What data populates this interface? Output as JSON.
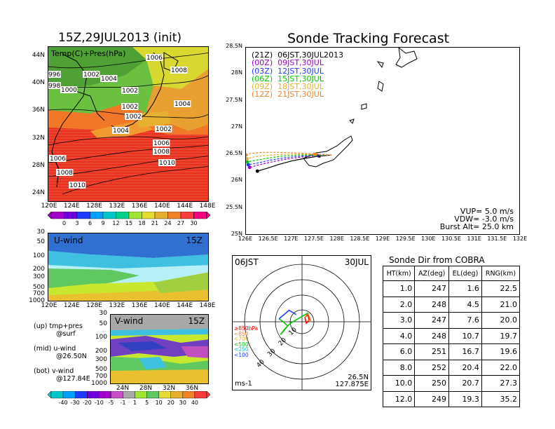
{
  "left_title": "15Z,29JUL2013 (init)",
  "map_top": {
    "label": "Temp(C)+Pres(hPa)",
    "lon_ticks": [
      "120E",
      "124E",
      "128E",
      "132E",
      "136E",
      "140E",
      "144E",
      "148E"
    ],
    "lat_ticks": [
      "24N",
      "28N",
      "32N",
      "36N",
      "40N",
      "44N"
    ],
    "isobar_labels": [
      "1006",
      "1008",
      "1002",
      "1004",
      "1002",
      "996",
      "998",
      "1000",
      "1002",
      "1004",
      "1002",
      "1004",
      "1002",
      "1006",
      "1008",
      "1010",
      "1006",
      "1008",
      "1010"
    ],
    "colorbar_ticks": [
      "0",
      "3",
      "6",
      "9",
      "12",
      "15",
      "18",
      "21",
      "24",
      "27",
      "30"
    ]
  },
  "u_panel": {
    "label": "U-wind",
    "time": "15Z",
    "p_ticks": [
      "30",
      "50",
      "100",
      "200",
      "300",
      "500",
      "700",
      "1000"
    ],
    "lon_ticks": [
      "120E",
      "124E",
      "128E",
      "132E",
      "136E",
      "140E",
      "144E",
      "148E"
    ]
  },
  "v_panel": {
    "label": "V-wind",
    "time": "15Z",
    "p_ticks": [
      "30",
      "50",
      "100",
      "200",
      "300",
      "500",
      "700",
      "1000"
    ],
    "lat_ticks": [
      "24N",
      "28N",
      "32N",
      "36N"
    ]
  },
  "notes": [
    [
      "(up) tmp+pres",
      "@surf"
    ],
    [
      "(mid) u-wind",
      "@26.50N"
    ],
    [
      "(bot) v-wind",
      "@127.84E"
    ]
  ],
  "wind_colorbar_ticks": [
    "-40",
    "-30",
    "-20",
    "-10",
    "-5",
    "-1",
    "1",
    "5",
    "10",
    "20",
    "30",
    "40"
  ],
  "tracking": {
    "title": "Sonde Tracking Forecast",
    "lon_ticks": [
      "126E",
      "126.5E",
      "127E",
      "127.5E",
      "128E",
      "128.5E",
      "129E",
      "129.5E",
      "130E",
      "130.5E",
      "131E",
      "131.5E",
      "132E"
    ],
    "lat_ticks": [
      "25N",
      "25.5N",
      "26N",
      "26.5N",
      "27N",
      "27.5N",
      "28N",
      "28.5N"
    ],
    "legend": [
      {
        "label": "(21Z)  06JST,30JUL2013",
        "color": "#000000"
      },
      {
        "label": "(00Z)  09JST,30JUL",
        "color": "#a000c8"
      },
      {
        "label": "(03Z)  12JST,30JUL",
        "color": "#1e3cff"
      },
      {
        "label": "(06Z)  15JST,30JUL",
        "color": "#00c800"
      },
      {
        "label": "(09Z)  18JST,30JUL",
        "color": "#e6af2d"
      },
      {
        "label": "(12Z)  21JST,30JUL",
        "color": "#f08228"
      }
    ],
    "params": [
      "VUP=  5.0  m/s",
      "VDW= -3.0  m/s",
      "Burst Alt=  25.0  km"
    ]
  },
  "hodo": {
    "left_label": "06JST",
    "right_label": "30JUL",
    "unit": "ms-1",
    "loc1": "26.5N",
    "loc2": "127.875E",
    "ring_labels": [
      "10",
      "20",
      "30",
      "40"
    ],
    "levels": [
      {
        "label": "≥850hPa",
        "color": "#ff0000"
      },
      {
        "label": "<850",
        "color": "#f08228"
      },
      {
        "label": "<700",
        "color": "#e6af2d"
      },
      {
        "label": "<500",
        "color": "#00c800"
      },
      {
        "label": "<250",
        "color": "#00c8c8"
      },
      {
        "label": "<100",
        "color": "#1e3cff"
      }
    ]
  },
  "table": {
    "title": "Sonde Dir from COBRA",
    "headers": [
      "HT(km)",
      "AZ(deg)",
      "EL(deg)",
      "RNG(km)"
    ],
    "rows": [
      [
        "1.0",
        "247",
        "1.6",
        "22.5"
      ],
      [
        "2.0",
        "248",
        "4.5",
        "21.0"
      ],
      [
        "3.0",
        "247",
        "7.6",
        "20.0"
      ],
      [
        "4.0",
        "248",
        "10.7",
        "19.7"
      ],
      [
        "6.0",
        "251",
        "16.7",
        "19.6"
      ],
      [
        "8.0",
        "252",
        "20.4",
        "22.0"
      ],
      [
        "10.0",
        "250",
        "20.7",
        "27.3"
      ],
      [
        "12.0",
        "249",
        "19.3",
        "35.2"
      ]
    ]
  },
  "chart_data": [
    {
      "type": "line",
      "title": "Sonde Tracking Forecast",
      "xlabel": "",
      "ylabel": "",
      "xlim": [
        126,
        132
      ],
      "ylim": [
        25,
        28.5
      ],
      "grid": false,
      "legend_position": "top-left",
      "series": [
        {
          "name": "(21Z)  06JST,30JUL2013",
          "x": [
            127.87,
            127.6,
            127.3,
            127.0,
            126.7,
            126.45,
            126.25
          ],
          "y": [
            26.5,
            26.48,
            26.44,
            26.39,
            26.32,
            26.25,
            26.2
          ]
        },
        {
          "name": "(00Z)  09JST,30JUL",
          "x": [
            127.87,
            127.55,
            127.2,
            126.85,
            126.5,
            126.25,
            126.08
          ],
          "y": [
            26.5,
            26.49,
            26.46,
            26.42,
            26.36,
            26.31,
            26.27
          ]
        },
        {
          "name": "(03Z)  12JST,30JUL",
          "x": [
            127.87,
            127.55,
            127.2,
            126.85,
            126.5,
            126.25,
            126.05
          ],
          "y": [
            26.5,
            26.5,
            26.48,
            26.45,
            26.4,
            26.35,
            26.32
          ]
        },
        {
          "name": "(06Z)  15JST,30JUL",
          "x": [
            127.87,
            127.5,
            127.15,
            126.8,
            126.45,
            126.2,
            126.03
          ],
          "y": [
            26.5,
            26.5,
            26.5,
            26.48,
            26.44,
            26.4,
            26.37
          ]
        },
        {
          "name": "(09Z)  18JST,30JUL",
          "x": [
            127.87,
            127.5,
            127.1,
            126.75,
            126.4,
            126.15,
            126.02
          ],
          "y": [
            26.5,
            26.51,
            26.52,
            26.51,
            26.49,
            26.46,
            26.43
          ]
        },
        {
          "name": "(12Z)  21JST,30JUL",
          "x": [
            127.87,
            127.5,
            127.1,
            126.7,
            126.35,
            126.1,
            126.0
          ],
          "y": [
            26.5,
            26.52,
            26.54,
            26.55,
            26.55,
            26.53,
            26.5
          ]
        }
      ]
    },
    {
      "type": "table",
      "title": "Sonde Dir from COBRA",
      "columns": [
        "HT(km)",
        "AZ(deg)",
        "EL(deg)",
        "RNG(km)"
      ],
      "rows": [
        [
          1.0,
          247,
          1.6,
          22.5
        ],
        [
          2.0,
          248,
          4.5,
          21.0
        ],
        [
          3.0,
          247,
          7.6,
          20.0
        ],
        [
          4.0,
          248,
          10.7,
          19.7
        ],
        [
          6.0,
          251,
          16.7,
          19.6
        ],
        [
          8.0,
          252,
          20.4,
          22.0
        ],
        [
          10.0,
          250,
          20.7,
          27.3
        ],
        [
          12.0,
          249,
          19.3,
          35.2
        ]
      ]
    },
    {
      "type": "line",
      "title": "",
      "xlim": [
        -40,
        40
      ],
      "ylim": [
        -40,
        40
      ],
      "segments": [
        {
          "color": "#ff0000",
          "u": [
            2,
            4,
            5,
            3,
            2
          ],
          "v": [
            3,
            5,
            1,
            -1,
            3
          ]
        },
        {
          "color": "#f08228",
          "u": [
            2,
            4,
            6,
            4
          ],
          "v": [
            3,
            6,
            1,
            1
          ]
        },
        {
          "color": "#00c800",
          "u": [
            4,
            -3,
            -8,
            -12,
            -15,
            -10,
            -13,
            -16
          ],
          "v": [
            6,
            2,
            -1,
            -5,
            -9,
            -3,
            0,
            2
          ]
        },
        {
          "color": "#1e3cff",
          "u": [
            -16,
            -9,
            -4
          ],
          "v": [
            2,
            8,
            5
          ]
        }
      ]
    }
  ]
}
